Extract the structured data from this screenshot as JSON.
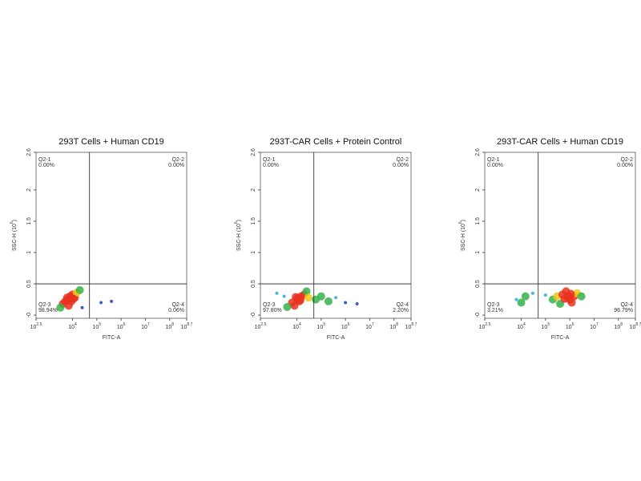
{
  "chart_data": [
    {
      "type": "scatter",
      "title": "293T Cells + Human CD19",
      "xlabel": "FITC-A",
      "ylabel": "SSC-H (10",
      "ylabel_exp": "6",
      "ylabel_end": ")",
      "log_x": true,
      "xlim": [
        316.23,
        501187233.6
      ],
      "ylim": [
        -0.05,
        2.6
      ],
      "xticks": [
        {
          "value": 316.23,
          "label": "10",
          "exp": "2.5"
        },
        {
          "value": 10000,
          "label": "10",
          "exp": "4"
        },
        {
          "value": 100000,
          "label": "10",
          "exp": "5"
        },
        {
          "value": 1000000,
          "label": "10",
          "exp": "6"
        },
        {
          "value": 10000000,
          "label": "10",
          "exp": "7"
        },
        {
          "value": 100000000,
          "label": "10",
          "exp": "8"
        },
        {
          "value": 501187233.6,
          "label": "10",
          "exp": "8.7"
        }
      ],
      "yticks": [
        {
          "value": 0,
          "label": "-0"
        },
        0.5,
        1,
        1.5,
        2,
        2.6
      ],
      "gate_x": 50119,
      "gate_y": 0.5,
      "quadrant_names": [
        "Q2-1",
        "Q2-2",
        "Q2-3",
        "Q2-4"
      ],
      "quadrant_values": [
        0,
        0,
        98.94,
        0.06
      ],
      "quadrant_value_labels": [
        "0.00%",
        "0.00%",
        "98.94%",
        "0.06%"
      ],
      "x": [
        6310,
        4000,
        8000,
        10000,
        5000,
        12600,
        7000,
        3200,
        15000,
        9000,
        20000,
        150000,
        400000,
        25000,
        6000,
        7500,
        11000
      ],
      "y": [
        0.25,
        0.18,
        0.3,
        0.33,
        0.22,
        0.28,
        0.15,
        0.12,
        0.36,
        0.22,
        0.4,
        0.2,
        0.22,
        0.12,
        0.28,
        0.24,
        0.26
      ]
    },
    {
      "type": "scatter",
      "title": "293T-CAR Cells + Protein Control",
      "xlabel": "FITC-A",
      "ylabel": "SSC-H (10",
      "ylabel_exp": "6",
      "ylabel_end": ")",
      "log_x": true,
      "xlim": [
        316.23,
        501187233.6
      ],
      "ylim": [
        -0.05,
        2.6
      ],
      "xticks": [
        {
          "value": 316.23,
          "label": "10",
          "exp": "2.5"
        },
        {
          "value": 10000,
          "label": "10",
          "exp": "4"
        },
        {
          "value": 100000,
          "label": "10",
          "exp": "5"
        },
        {
          "value": 1000000,
          "label": "10",
          "exp": "6"
        },
        {
          "value": 10000000,
          "label": "10",
          "exp": "7"
        },
        {
          "value": 100000000,
          "label": "10",
          "exp": "8"
        },
        {
          "value": 501187233.6,
          "label": "10",
          "exp": "8.7"
        }
      ],
      "yticks": [
        {
          "value": 0,
          "label": "-0"
        },
        0.5,
        1,
        1.5,
        2,
        2.6
      ],
      "gate_x": 50119,
      "gate_y": 0.5,
      "quadrant_names": [
        "Q2-1",
        "Q2-2",
        "Q2-3",
        "Q2-4"
      ],
      "quadrant_values": [
        0,
        0,
        97.8,
        2.2
      ],
      "quadrant_value_labels": [
        "0.00%",
        "0.00%",
        "97.80%",
        "2.20%"
      ],
      "x": [
        10000,
        6310,
        15000,
        20000,
        8000,
        12600,
        4000,
        25000,
        30000,
        3000,
        60000,
        100000,
        200000,
        400000,
        1000000,
        3000000,
        1500,
        11000,
        14000,
        9000
      ],
      "y": [
        0.25,
        0.2,
        0.3,
        0.33,
        0.15,
        0.22,
        0.13,
        0.38,
        0.28,
        0.3,
        0.25,
        0.3,
        0.22,
        0.28,
        0.2,
        0.18,
        0.35,
        0.27,
        0.24,
        0.29
      ]
    },
    {
      "type": "scatter",
      "title": "293T-CAR Cells + Human CD19",
      "xlabel": "FITC-A",
      "ylabel": "SSC-H (10",
      "ylabel_exp": "6",
      "ylabel_end": ")",
      "log_x": true,
      "xlim": [
        316.23,
        501187233.6
      ],
      "ylim": [
        -0.05,
        2.6
      ],
      "xticks": [
        {
          "value": 316.23,
          "label": "10",
          "exp": "2.5"
        },
        {
          "value": 10000,
          "label": "10",
          "exp": "4"
        },
        {
          "value": 100000,
          "label": "10",
          "exp": "5"
        },
        {
          "value": 1000000,
          "label": "10",
          "exp": "6"
        },
        {
          "value": 10000000,
          "label": "10",
          "exp": "7"
        },
        {
          "value": 100000000,
          "label": "10",
          "exp": "8"
        },
        {
          "value": 501187233.6,
          "label": "10",
          "exp": "8.7"
        }
      ],
      "yticks": [
        {
          "value": 0,
          "label": "-0"
        },
        0.5,
        1,
        1.5,
        2,
        2.6
      ],
      "gate_x": 50119,
      "gate_y": 0.5,
      "quadrant_names": [
        "Q2-1",
        "Q2-2",
        "Q2-3",
        "Q2-4"
      ],
      "quadrant_values": [
        0,
        0,
        3.21,
        96.79
      ],
      "quadrant_value_labels": [
        "0.00%",
        "0.00%",
        "3.21%",
        "96.79%"
      ],
      "x": [
        10000,
        6310,
        15000,
        30000,
        200000,
        300000,
        500000,
        800000,
        1000000,
        1500000,
        2000000,
        400000,
        700000,
        3000000,
        1200000,
        100000,
        900000,
        600000,
        1100000
      ],
      "y": [
        0.2,
        0.25,
        0.3,
        0.35,
        0.25,
        0.3,
        0.33,
        0.28,
        0.25,
        0.3,
        0.35,
        0.18,
        0.38,
        0.3,
        0.2,
        0.32,
        0.3,
        0.26,
        0.34
      ]
    }
  ]
}
